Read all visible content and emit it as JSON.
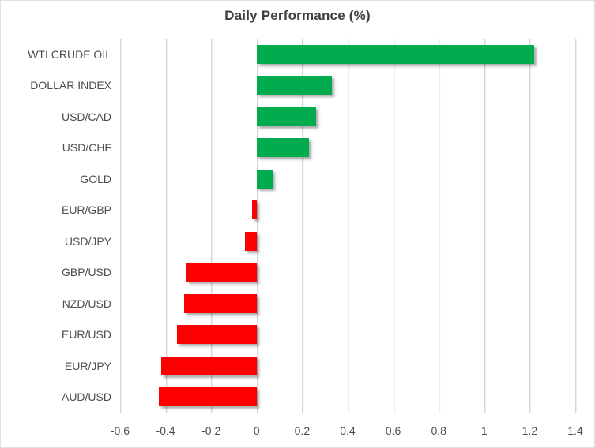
{
  "chart_data": {
    "type": "bar",
    "orientation": "horizontal",
    "title": "Daily Performance (%)",
    "categories": [
      "WTI CRUDE OIL",
      "DOLLAR INDEX",
      "USD/CAD",
      "USD/CHF",
      "GOLD",
      "EUR/GBP",
      "USD/JPY",
      "GBP/USD",
      "NZD/USD",
      "EUR/USD",
      "EUR/JPY",
      "AUD/USD"
    ],
    "values": [
      1.22,
      0.33,
      0.26,
      0.23,
      0.07,
      -0.02,
      -0.05,
      -0.31,
      -0.32,
      -0.35,
      -0.42,
      -0.43
    ],
    "xlim": [
      -0.6,
      1.4
    ],
    "xticks": [
      -0.6,
      -0.4,
      -0.2,
      0,
      0.2,
      0.4,
      0.6,
      0.8,
      1,
      1.2,
      1.4
    ],
    "xtick_labels": [
      "-0.6",
      "-0.4",
      "-0.2",
      "0",
      "0.2",
      "0.4",
      "0.6",
      "0.8",
      "1",
      "1.2",
      "1.4"
    ],
    "grid": true,
    "legend": false,
    "xlabel": "",
    "ylabel": ""
  },
  "colors": {
    "positive": "#00AC4E",
    "negative": "#FF0000",
    "gridline": "#D6D6D6",
    "axis_text": "#4D4D4D",
    "title_text": "#404040",
    "border": "#E0E0E0"
  }
}
